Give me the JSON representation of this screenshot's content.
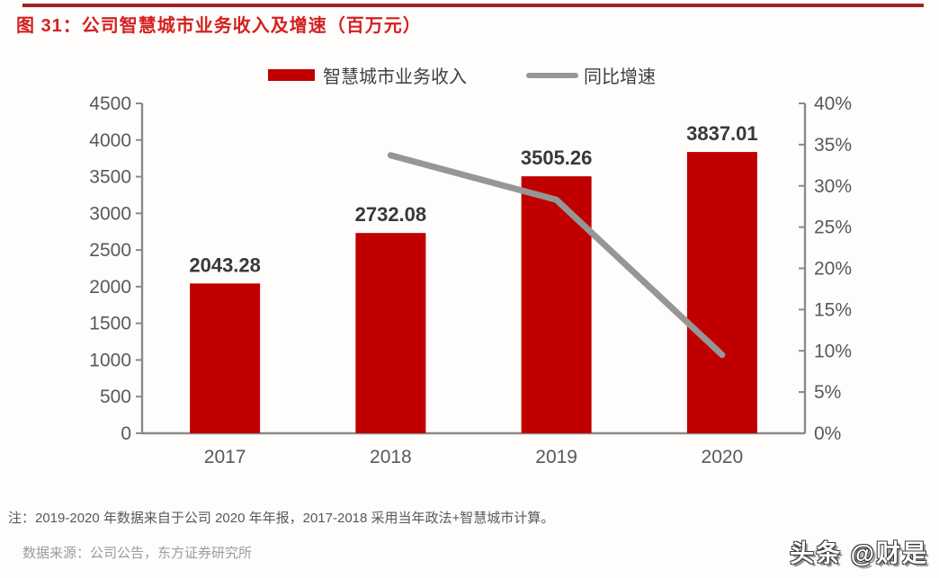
{
  "page": {
    "bg_color": "#FEFDFB",
    "rule_color": "#9E2226"
  },
  "header": {
    "title": "图 31：公司智慧城市业务收入及增速（百万元）",
    "title_color": "#D32120"
  },
  "legend": {
    "items": [
      {
        "label": "智慧城市业务收入",
        "swatch": "bar",
        "color": "#C00000"
      },
      {
        "label": "同比增速",
        "swatch": "line",
        "color": "#969696"
      }
    ]
  },
  "chart_data": {
    "type": "bar",
    "subtype": "combo-bar-line",
    "title": "公司智慧城市业务收入及增速（百万元）",
    "categories": [
      "2017",
      "2018",
      "2019",
      "2020"
    ],
    "series": [
      {
        "name": "智慧城市业务收入",
        "type": "bar",
        "axis": "left",
        "color": "#C00000",
        "values": [
          2043.28,
          2732.08,
          3505.26,
          3837.01
        ],
        "labels": [
          "2043.28",
          "2732.08",
          "3505.26",
          "3837.01"
        ]
      },
      {
        "name": "同比增速",
        "type": "line",
        "axis": "right",
        "color": "#969696",
        "values": [
          null,
          33.7,
          28.3,
          9.5
        ]
      }
    ],
    "left_axis": {
      "min": 0,
      "max": 4500,
      "step": 500,
      "tick_labels": [
        "0",
        "500",
        "1000",
        "1500",
        "2000",
        "2500",
        "3000",
        "3500",
        "4000",
        "4500"
      ]
    },
    "right_axis": {
      "min": 0,
      "max": 40,
      "step": 5,
      "tick_labels": [
        "0%",
        "5%",
        "10%",
        "15%",
        "20%",
        "25%",
        "30%",
        "35%",
        "40%"
      ]
    },
    "grid": false,
    "legend_position": "top-center",
    "axis_color": "#8A8A8A",
    "tick_label_color": "#595959",
    "value_label_color": "#3B3838"
  },
  "footnote": {
    "text": "注：2019-2020 年数据来自于公司 2020 年年报，2017-2018 采用当年政法+智慧城市计算。"
  },
  "source": {
    "text": "数据来源：公司公告，东方证券研究所"
  },
  "watermark": {
    "text": "头条 @财是"
  }
}
